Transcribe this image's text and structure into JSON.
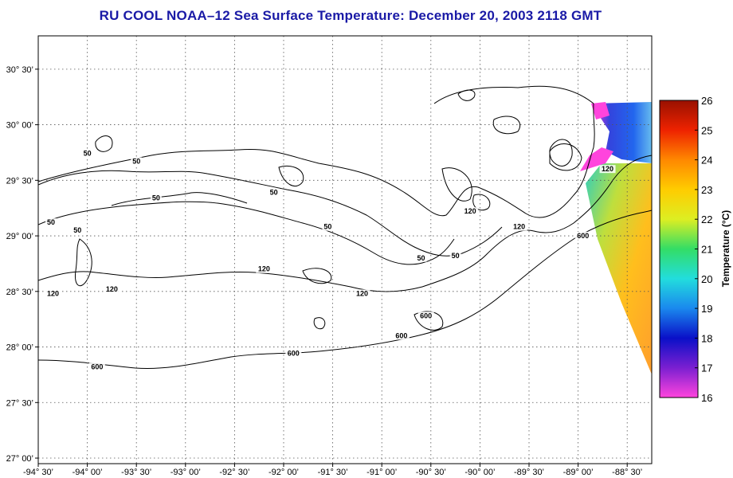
{
  "title": "RU COOL  NOAA–12  Sea Surface Temperature:  December 20, 2003 2118 GMT",
  "map": {
    "lon_range": [
      -94.5,
      -88.25
    ],
    "lat_range": [
      26.95,
      30.8
    ],
    "lon_ticks": [
      {
        "value": -94.5,
        "label": "-94° 30’"
      },
      {
        "value": -94.0,
        "label": "-94° 00’"
      },
      {
        "value": -93.5,
        "label": "-93° 30’"
      },
      {
        "value": -93.0,
        "label": "-93° 00’"
      },
      {
        "value": -92.5,
        "label": "-92° 30’"
      },
      {
        "value": -92.0,
        "label": "-92° 00’"
      },
      {
        "value": -91.5,
        "label": "-91° 30’"
      },
      {
        "value": -91.0,
        "label": "-91° 00’"
      },
      {
        "value": -90.5,
        "label": "-90° 30’"
      },
      {
        "value": -90.0,
        "label": "-90° 00’"
      },
      {
        "value": -89.5,
        "label": "-89° 30’"
      },
      {
        "value": -89.0,
        "label": "-89° 00’"
      },
      {
        "value": -88.5,
        "label": "-88° 30’"
      }
    ],
    "lat_ticks": [
      {
        "value": 30.5,
        "label": "30° 30’"
      },
      {
        "value": 30.0,
        "label": "30° 00’"
      },
      {
        "value": 29.5,
        "label": "29° 30’"
      },
      {
        "value": 29.0,
        "label": "29° 00’"
      },
      {
        "value": 28.5,
        "label": "28° 30’"
      },
      {
        "value": 28.0,
        "label": "28° 00’"
      },
      {
        "value": 27.5,
        "label": "27° 30’"
      },
      {
        "value": 27.0,
        "label": "27° 00’"
      }
    ],
    "grid": true,
    "contour_labels": [
      {
        "text": "50",
        "lon": -94.0,
        "lat": 29.72
      },
      {
        "text": "50",
        "lon": -93.5,
        "lat": 29.65
      },
      {
        "text": "50",
        "lon": -93.3,
        "lat": 29.32
      },
      {
        "text": "50",
        "lon": -94.37,
        "lat": 29.1
      },
      {
        "text": "50",
        "lon": -94.1,
        "lat": 29.03
      },
      {
        "text": "50",
        "lon": -92.1,
        "lat": 29.37
      },
      {
        "text": "50",
        "lon": -91.55,
        "lat": 29.06
      },
      {
        "text": "50",
        "lon": -90.6,
        "lat": 28.78
      },
      {
        "text": "50",
        "lon": -90.25,
        "lat": 28.8
      },
      {
        "text": "120",
        "lon": -94.35,
        "lat": 28.46
      },
      {
        "text": "120",
        "lon": -93.75,
        "lat": 28.5
      },
      {
        "text": "120",
        "lon": -92.2,
        "lat": 28.68
      },
      {
        "text": "120",
        "lon": -91.2,
        "lat": 28.46
      },
      {
        "text": "120",
        "lon": -90.1,
        "lat": 29.2
      },
      {
        "text": "120",
        "lon": -89.6,
        "lat": 29.06
      },
      {
        "text": "120",
        "lon": -88.7,
        "lat": 29.58
      },
      {
        "text": "600",
        "lon": -93.9,
        "lat": 27.8
      },
      {
        "text": "600",
        "lon": -91.9,
        "lat": 27.92
      },
      {
        "text": "600",
        "lon": -90.8,
        "lat": 28.08
      },
      {
        "text": "600",
        "lon": -90.55,
        "lat": 28.26
      },
      {
        "text": "600",
        "lon": -88.95,
        "lat": 28.98
      }
    ]
  },
  "colorbar": {
    "label": "Temperature (°C)",
    "min": 16,
    "max": 26,
    "ticks": [
      "16",
      "17",
      "18",
      "19",
      "20",
      "21",
      "22",
      "23",
      "24",
      "25",
      "26"
    ],
    "stops": [
      "#ff44dd",
      "#7b1fd1",
      "#0a10c8",
      "#1a88ee",
      "#22dddd",
      "#33dd66",
      "#ddee22",
      "#ffcc00",
      "#ff8800",
      "#ee2200",
      "#991100"
    ]
  }
}
